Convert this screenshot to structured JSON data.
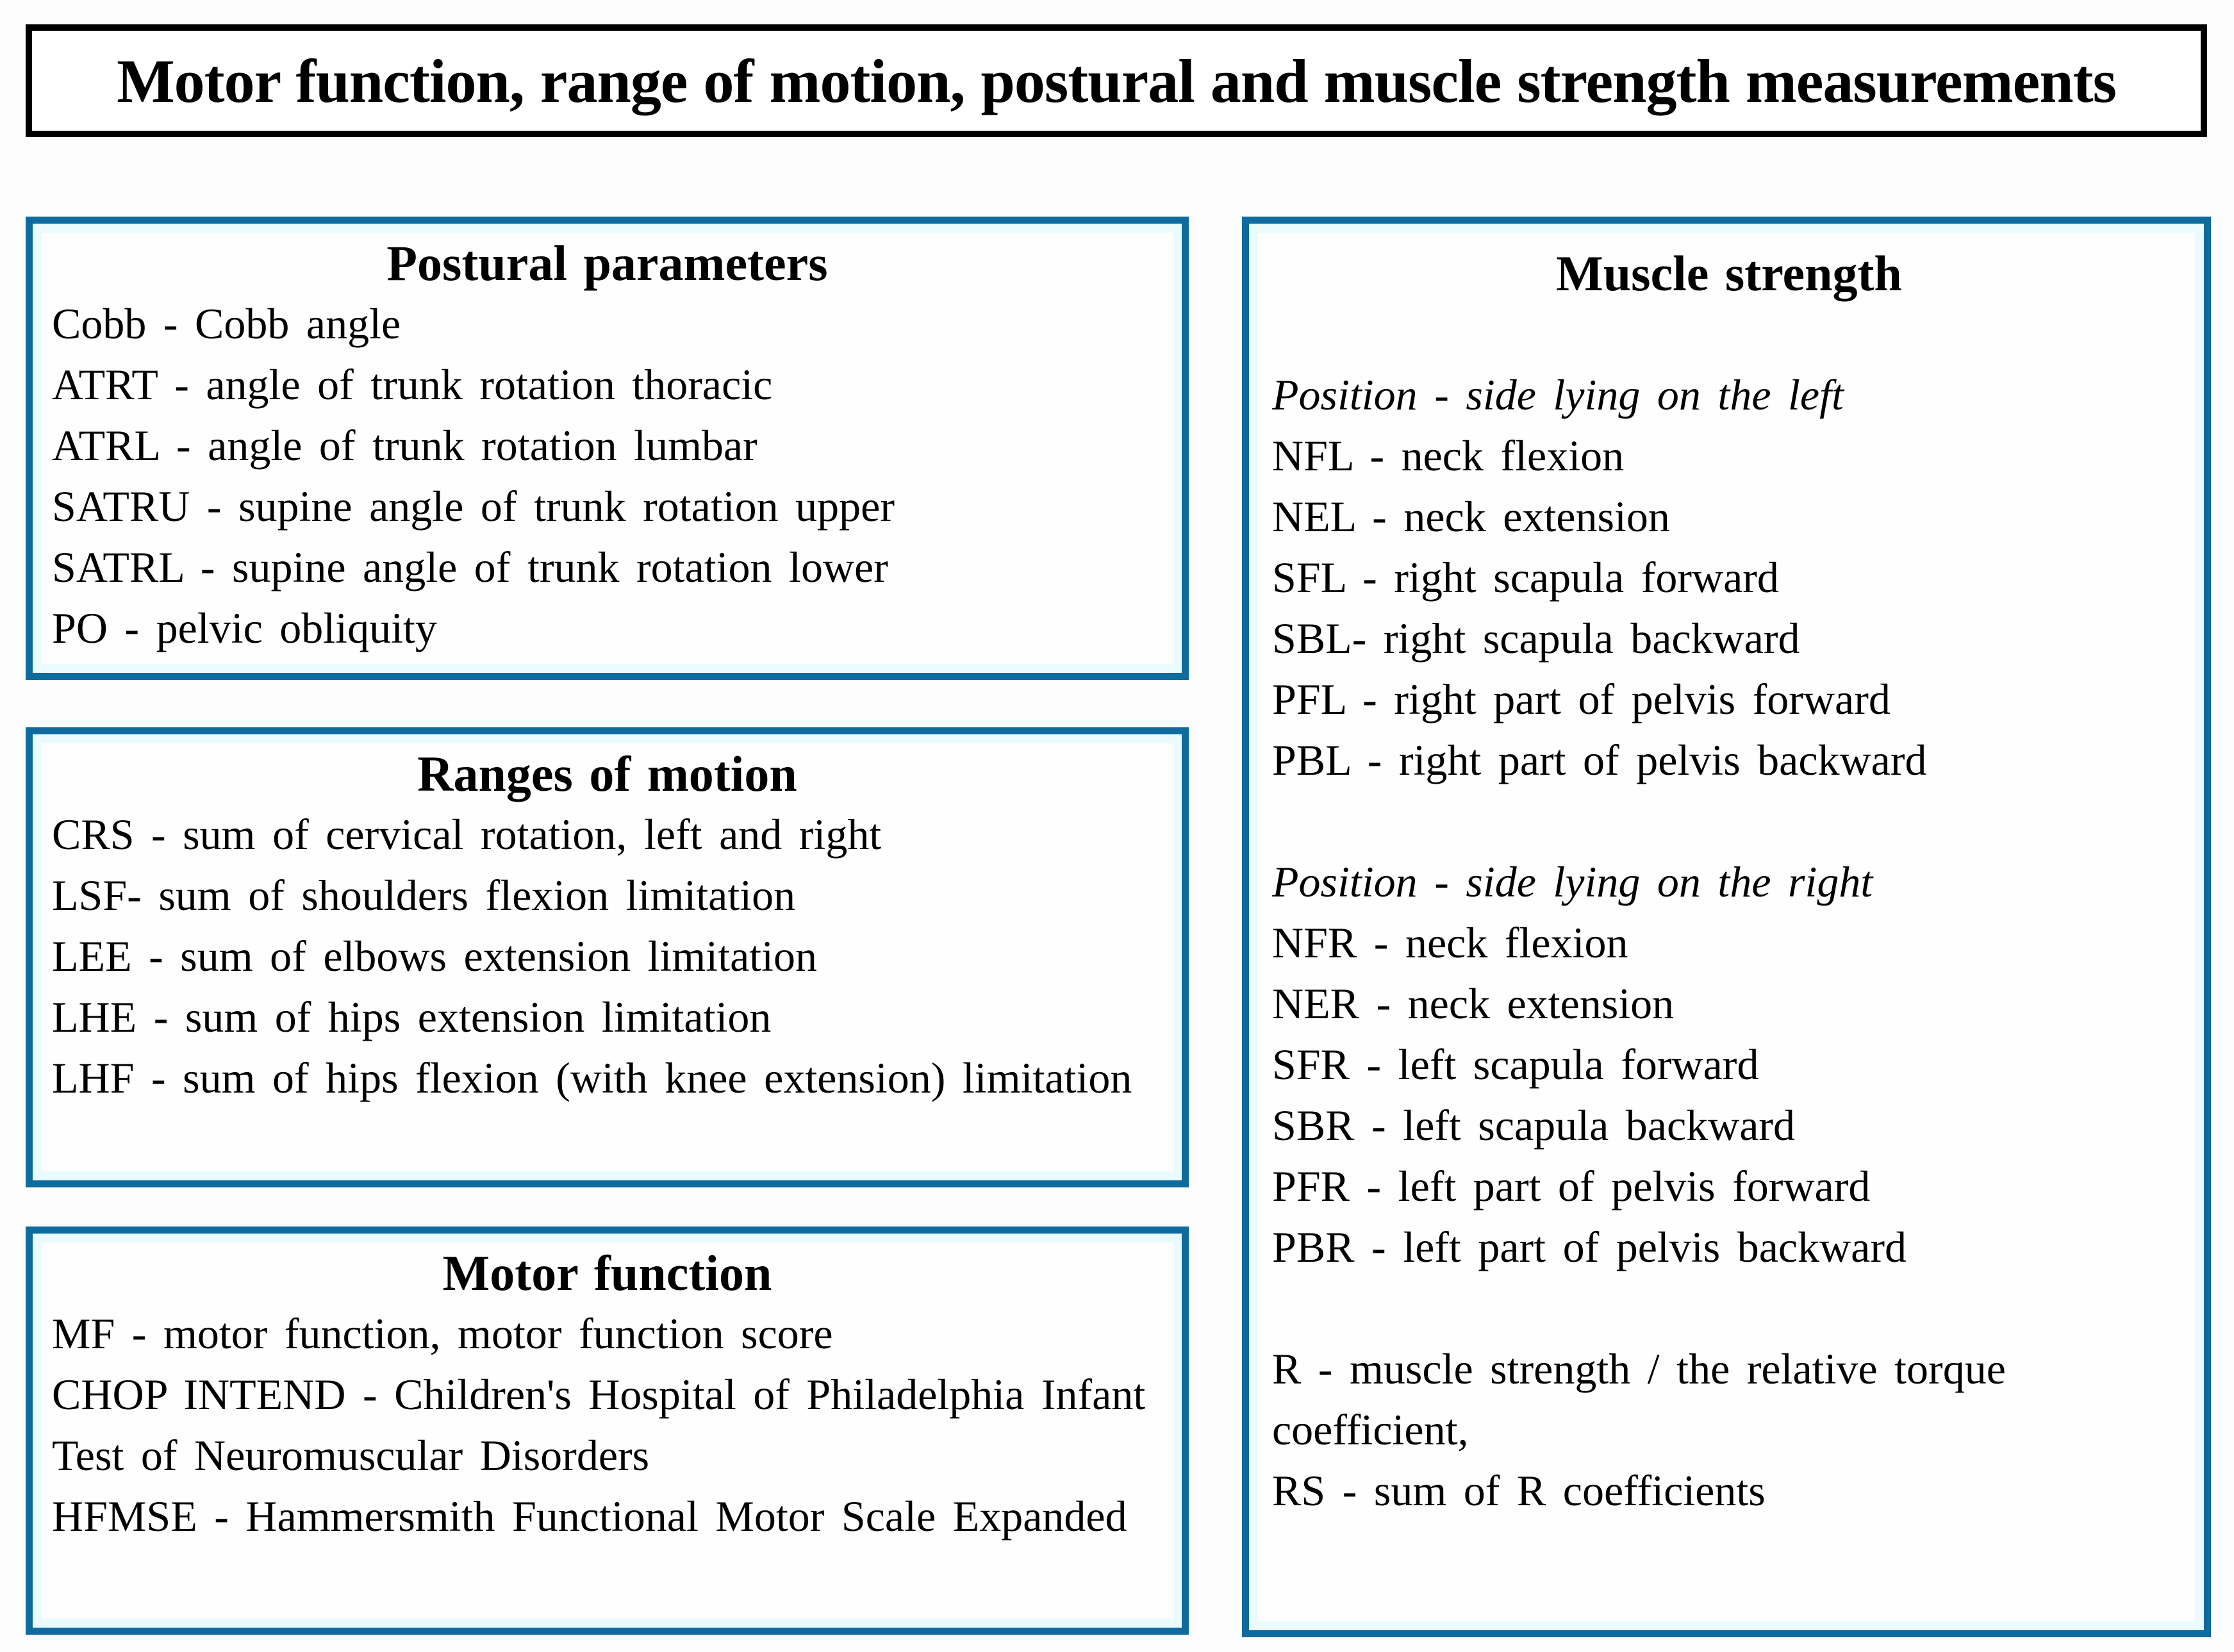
{
  "title": "Motor function, range of motion, postural and muscle strength measurements",
  "colors": {
    "box_border": "#0f6b9d",
    "title_border": "#000000",
    "inner_glow": "#e9fbfe",
    "text": "#000000"
  },
  "boxes": {
    "postural": {
      "heading": "Postural parameters",
      "items": [
        "Cobb - Cobb angle",
        "ATRT - angle of trunk rotation thoracic",
        "ATRL - angle of trunk rotation lumbar",
        "SATRU - supine angle of trunk rotation upper",
        "SATRL - supine angle of trunk rotation lower",
        "PO - pelvic obliquity"
      ]
    },
    "ranges": {
      "heading": "Ranges of motion",
      "items": [
        "CRS - sum of cervical rotation, left and right",
        "LSF- sum of shoulders flexion limitation",
        "LEE - sum of elbows extension limitation",
        "LHE - sum of hips extension limitation",
        "LHF - sum of hips flexion (with knee extension) limitation"
      ]
    },
    "motor": {
      "heading": "Motor function",
      "items": [
        "MF - motor function, motor function score",
        "CHOP INTEND - Children's Hospital of Philadelphia Infant Test of Neuromuscular Disorders",
        "HFMSE - Hammersmith Functional Motor Scale Expanded"
      ]
    },
    "muscle": {
      "heading": "Muscle strength",
      "sections": [
        {
          "position": "Position - side lying on the left",
          "items": [
            "NFL - neck flexion",
            "NEL - neck extension",
            "SFL - right scapula forward",
            "SBL- right scapula backward",
            "PFL - right part of pelvis forward",
            "PBL - right part of pelvis backward"
          ]
        },
        {
          "position": "Position - side lying on the right",
          "items": [
            "NFR - neck flexion",
            "NER - neck extension",
            "SFR - left scapula forward",
            "SBR - left scapula backward",
            "PFR - left part of pelvis forward",
            "PBR - left part of pelvis backward"
          ]
        }
      ],
      "footer": [
        "R - muscle strength / the relative torque coefficient,",
        "RS - sum of R coefficients"
      ]
    }
  }
}
